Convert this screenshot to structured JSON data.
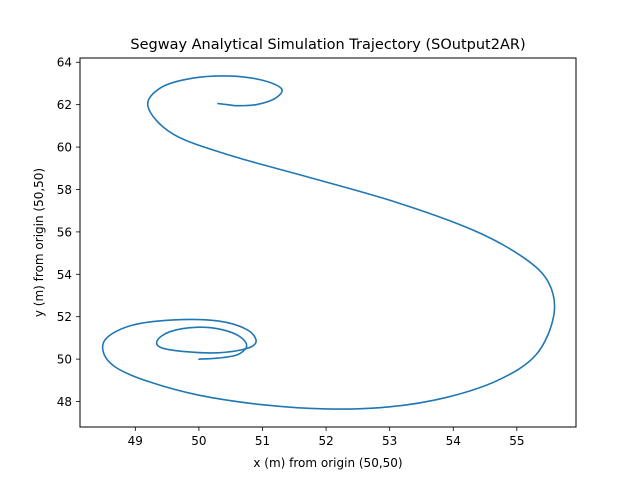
{
  "chart_data": {
    "type": "line",
    "title": "Segway Analytical Simulation Trajectory (SOutput2AR)",
    "xlabel": "x (m) from origin (50,50)",
    "ylabel": "y (m) from origin (50,50)",
    "xlim": [
      48.13,
      55.93
    ],
    "ylim": [
      46.8,
      64.2
    ],
    "xticks": [
      49,
      50,
      51,
      52,
      53,
      54,
      55
    ],
    "yticks": [
      48,
      50,
      52,
      54,
      56,
      58,
      60,
      62,
      64
    ],
    "grid": false,
    "series_color": "#1f77b4",
    "series": [
      {
        "x": [
          50.0,
          50.3,
          50.6,
          50.75,
          50.65,
          50.35,
          49.95,
          49.55,
          49.35,
          49.4,
          49.8,
          50.3,
          50.75,
          50.9,
          50.75,
          50.3,
          49.6,
          48.95,
          48.55,
          48.5,
          48.7,
          49.2,
          50.0,
          51.0,
          52.0,
          53.0,
          53.9,
          54.7,
          55.3,
          55.58,
          55.5,
          55.1,
          54.3,
          53.1,
          51.7,
          50.5,
          49.6,
          49.2,
          49.4,
          49.9,
          50.5,
          51.0,
          51.3,
          51.2,
          50.9,
          50.6,
          50.45,
          50.3
        ],
        "y": [
          50.0,
          50.05,
          50.2,
          50.6,
          51.05,
          51.4,
          51.5,
          51.3,
          50.9,
          50.55,
          50.35,
          50.3,
          50.5,
          50.85,
          51.4,
          51.8,
          51.85,
          51.6,
          51.0,
          50.3,
          49.6,
          48.95,
          48.3,
          47.85,
          47.65,
          47.75,
          48.2,
          49.0,
          50.2,
          52.05,
          53.6,
          54.8,
          56.1,
          57.4,
          58.6,
          59.6,
          60.6,
          61.9,
          62.8,
          63.25,
          63.35,
          63.15,
          62.75,
          62.3,
          62.0,
          61.95,
          62.0,
          62.05
        ]
      }
    ]
  }
}
